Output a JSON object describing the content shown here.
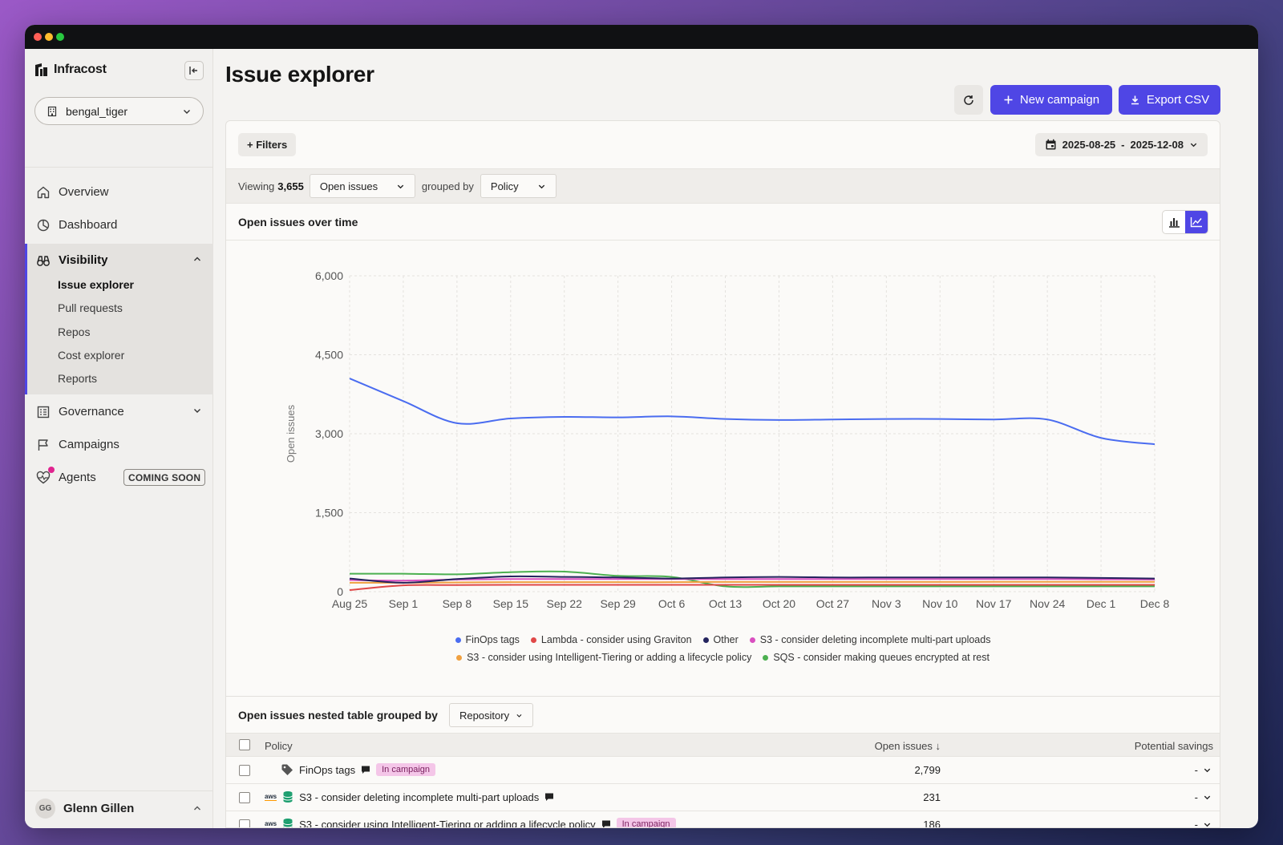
{
  "app": {
    "name": "Infracost"
  },
  "sidebar": {
    "org": "bengal_tiger",
    "nav": [
      {
        "label": "Overview"
      },
      {
        "label": "Dashboard"
      },
      {
        "label": "Visibility"
      },
      {
        "label": "Governance"
      },
      {
        "label": "Campaigns"
      },
      {
        "label": "Agents",
        "badge": "COMING SOON"
      }
    ],
    "visibility_items": [
      "Issue explorer",
      "Pull requests",
      "Repos",
      "Cost explorer",
      "Reports"
    ],
    "user": {
      "initials": "GG",
      "name": "Glenn Gillen"
    }
  },
  "header": {
    "title": "Issue explorer",
    "new_campaign": "New campaign",
    "export_csv": "Export CSV"
  },
  "filters": {
    "filters_label": "+ Filters",
    "date_start": "2025-08-25",
    "date_sep": "-",
    "date_end": "2025-12-08"
  },
  "toolbar": {
    "viewing_label": "Viewing",
    "viewing_count": "3,655",
    "status": "Open issues",
    "grouped_by": "grouped by",
    "group": "Policy"
  },
  "chart_section": {
    "title": "Open issues over time"
  },
  "chart_data": {
    "type": "line",
    "ylabel": "Open issues",
    "ylim": [
      0,
      6000
    ],
    "yticks": [
      "0",
      "1,500",
      "3,000",
      "4,500",
      "6,000"
    ],
    "yticks_values": [
      0,
      1500,
      3000,
      4500,
      6000
    ],
    "categories": [
      "Aug 25",
      "Sep 1",
      "Sep 8",
      "Sep 15",
      "Sep 22",
      "Sep 29",
      "Oct 6",
      "Oct 13",
      "Oct 20",
      "Oct 27",
      "Nov 3",
      "Nov 10",
      "Nov 17",
      "Nov 24",
      "Dec 1",
      "Dec 8"
    ],
    "grid": true,
    "legend_position": "bottom",
    "series": [
      {
        "name": "FinOps tags",
        "color": "#4a6cf0",
        "values": [
          4050,
          3620,
          3200,
          3290,
          3320,
          3310,
          3330,
          3280,
          3260,
          3270,
          3280,
          3280,
          3270,
          3270,
          2920,
          2800
        ]
      },
      {
        "name": "Lambda - consider using Graviton",
        "color": "#e04848",
        "values": [
          30,
          120,
          125,
          130,
          130,
          130,
          130,
          130,
          130,
          130,
          130,
          130,
          130,
          130,
          130,
          130
        ]
      },
      {
        "name": "Other",
        "color": "#24245e",
        "values": [
          250,
          170,
          240,
          290,
          280,
          270,
          250,
          270,
          280,
          270,
          270,
          270,
          270,
          270,
          260,
          250
        ]
      },
      {
        "name": "S3 - consider deleting incomplete multi-part uploads",
        "color": "#d94fc0",
        "values": [
          220,
          210,
          230,
          240,
          240,
          240,
          240,
          240,
          240,
          240,
          240,
          240,
          240,
          240,
          235,
          231
        ]
      },
      {
        "name": "S3 - consider using Intelligent-Tiering or adding a lifecycle policy",
        "color": "#f0a040",
        "values": [
          170,
          170,
          175,
          180,
          180,
          180,
          180,
          185,
          185,
          185,
          185,
          185,
          186,
          186,
          186,
          186
        ]
      },
      {
        "name": "SQS - consider making queues encrypted at rest",
        "color": "#4cb050",
        "values": [
          340,
          340,
          330,
          370,
          380,
          300,
          280,
          100,
          100,
          100,
          100,
          100,
          100,
          100,
          100,
          100
        ]
      }
    ]
  },
  "table": {
    "title": "Open issues nested table grouped by",
    "group": "Repository",
    "columns": {
      "policy": "Policy",
      "open": "Open issues ↓",
      "savings": "Potential savings"
    },
    "rows": [
      {
        "policy": "FinOps tags",
        "badge": "In campaign",
        "open": "2,799",
        "savings": "-",
        "aws": false
      },
      {
        "policy": "S3 - consider deleting incomplete multi-part uploads",
        "badge": "",
        "open": "231",
        "savings": "-",
        "aws": true,
        "aws_label": "aws"
      },
      {
        "policy": "S3 - consider using Intelligent-Tiering or adding a lifecycle policy",
        "badge": "In campaign",
        "open": "186",
        "savings": "-",
        "aws": true,
        "aws_label": "aws"
      }
    ]
  }
}
